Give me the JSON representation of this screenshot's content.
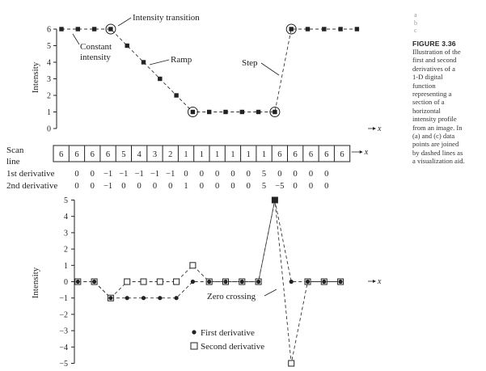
{
  "chart_data": [
    {
      "type": "line",
      "panel": "a",
      "ylabel": "Intensity",
      "xlabel": "x",
      "ylim": [
        0,
        6
      ],
      "y_ticks": [
        "0",
        "1",
        "2",
        "3",
        "4",
        "5",
        "6"
      ],
      "x": [
        0,
        1,
        2,
        3,
        4,
        5,
        6,
        7,
        8,
        9,
        10,
        11,
        12,
        13,
        14,
        15,
        16,
        17,
        18
      ],
      "series": [
        {
          "values": [
            6,
            6,
            6,
            6,
            5,
            4,
            3,
            2,
            1,
            1,
            1,
            1,
            1,
            1,
            6,
            6,
            6,
            6,
            6
          ]
        }
      ],
      "annotations": [
        "Intensity transition",
        "Constant",
        "intensity",
        "Ramp",
        "Step"
      ]
    },
    {
      "type": "table",
      "panel": "b",
      "scan_line_label": [
        "Scan",
        "line"
      ],
      "x_symbol": "x",
      "scan_line": [
        "6",
        "6",
        "6",
        "6",
        "5",
        "4",
        "3",
        "2",
        "1",
        "1",
        "1",
        "1",
        "1",
        "1",
        "6",
        "6",
        "6",
        "6",
        "6"
      ],
      "rows": [
        {
          "label": "1st derivative",
          "values": [
            "0",
            "0",
            "−1",
            "−1",
            "−1",
            "−1",
            "−1",
            "0",
            "0",
            "0",
            "0",
            "0",
            "5",
            "0",
            "0",
            "0",
            "0"
          ]
        },
        {
          "label": "2nd derivative",
          "values": [
            "0",
            "0",
            "−1",
            "0",
            "0",
            "0",
            "0",
            "1",
            "0",
            "0",
            "0",
            "0",
            "5",
            "−5",
            "0",
            "0",
            "0"
          ]
        }
      ]
    },
    {
      "type": "line",
      "panel": "c",
      "ylabel": "Intensity",
      "xlabel": "x",
      "ylim": [
        -5,
        5
      ],
      "y_ticks": [
        "−5",
        "−4",
        "−3",
        "−2",
        "−1",
        "0",
        "1",
        "2",
        "3",
        "4",
        "5"
      ],
      "x": [
        1,
        2,
        3,
        4,
        5,
        6,
        7,
        8,
        9,
        10,
        11,
        12,
        13,
        14,
        15,
        16,
        17
      ],
      "series": [
        {
          "name": "First derivative",
          "values": [
            0,
            0,
            -1,
            -1,
            -1,
            -1,
            -1,
            0,
            0,
            0,
            0,
            0,
            5,
            0,
            0,
            0,
            0
          ]
        },
        {
          "name": "Second derivative",
          "values": [
            0,
            0,
            -1,
            0,
            0,
            0,
            0,
            1,
            0,
            0,
            0,
            0,
            5,
            -5,
            0,
            0,
            0
          ]
        }
      ],
      "annotations": [
        "Zero crossing"
      ]
    }
  ],
  "labels": {
    "transition": "Intensity transition",
    "constant_1": "Constant",
    "constant_2": "intensity",
    "ramp": "Ramp",
    "step": "Step",
    "zero_crossing": "Zero crossing",
    "legend_first": "First derivative",
    "legend_second": "Second derivative"
  },
  "caption": {
    "panel_letters": [
      "a",
      "b",
      "c"
    ],
    "figure_number": "FIGURE 3.36",
    "lines": [
      "Illustration of the",
      "first and second",
      "derivatives of a",
      "1-D digital",
      "function",
      "representing a",
      "section of a",
      "horizontal",
      "intensity profile",
      "from an image. In",
      "(a) and (c) data",
      "points are joined",
      "by dashed lines as",
      "a visualization aid."
    ]
  }
}
